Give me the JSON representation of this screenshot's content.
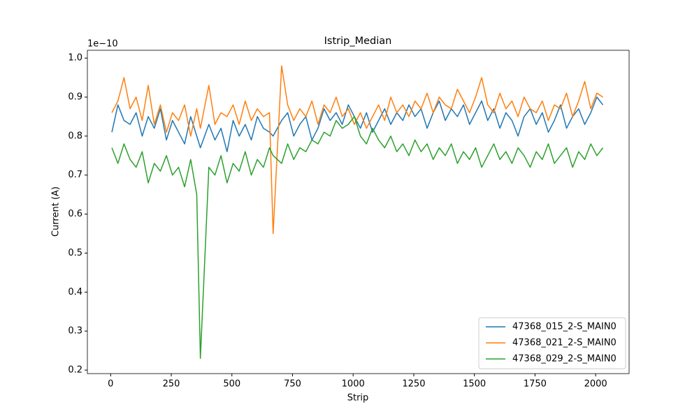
{
  "chart_data": {
    "type": "line",
    "title": "Istrip_Median",
    "xlabel": "Strip",
    "ylabel": "Current (A)",
    "y_offset_label": "1e−10",
    "x": [
      5,
      30,
      55,
      80,
      105,
      130,
      155,
      180,
      205,
      230,
      255,
      280,
      305,
      330,
      355,
      370,
      405,
      430,
      455,
      480,
      505,
      530,
      555,
      580,
      605,
      630,
      655,
      670,
      705,
      730,
      755,
      780,
      805,
      830,
      855,
      880,
      905,
      930,
      955,
      980,
      1005,
      1030,
      1055,
      1080,
      1105,
      1130,
      1155,
      1180,
      1205,
      1230,
      1255,
      1280,
      1305,
      1330,
      1355,
      1380,
      1405,
      1430,
      1455,
      1480,
      1505,
      1530,
      1555,
      1580,
      1605,
      1630,
      1655,
      1680,
      1705,
      1730,
      1755,
      1780,
      1805,
      1830,
      1855,
      1880,
      1905,
      1930,
      1955,
      1980,
      2005,
      2030
    ],
    "series": [
      {
        "name": "47368_015_2-S_MAIN0",
        "color": "#1f77b4",
        "values": [
          0.81,
          0.88,
          0.84,
          0.83,
          0.86,
          0.8,
          0.85,
          0.82,
          0.87,
          0.79,
          0.84,
          0.81,
          0.78,
          0.85,
          0.8,
          0.77,
          0.83,
          0.79,
          0.82,
          0.76,
          0.84,
          0.8,
          0.83,
          0.79,
          0.85,
          0.82,
          0.81,
          0.8,
          0.84,
          0.86,
          0.8,
          0.83,
          0.85,
          0.79,
          0.82,
          0.87,
          0.84,
          0.86,
          0.83,
          0.88,
          0.85,
          0.82,
          0.86,
          0.81,
          0.84,
          0.87,
          0.83,
          0.86,
          0.84,
          0.88,
          0.85,
          0.87,
          0.82,
          0.86,
          0.89,
          0.84,
          0.87,
          0.85,
          0.88,
          0.83,
          0.86,
          0.89,
          0.84,
          0.87,
          0.82,
          0.86,
          0.84,
          0.8,
          0.85,
          0.87,
          0.83,
          0.86,
          0.81,
          0.84,
          0.88,
          0.82,
          0.85,
          0.87,
          0.83,
          0.86,
          0.9,
          0.88
        ]
      },
      {
        "name": "47368_021_2-S_MAIN0",
        "color": "#ff7f0e",
        "values": [
          0.86,
          0.89,
          0.95,
          0.87,
          0.9,
          0.84,
          0.93,
          0.83,
          0.88,
          0.81,
          0.86,
          0.84,
          0.88,
          0.8,
          0.87,
          0.82,
          0.93,
          0.83,
          0.86,
          0.85,
          0.88,
          0.83,
          0.89,
          0.84,
          0.87,
          0.85,
          0.86,
          0.55,
          0.98,
          0.88,
          0.84,
          0.87,
          0.85,
          0.89,
          0.83,
          0.88,
          0.86,
          0.9,
          0.85,
          0.87,
          0.83,
          0.86,
          0.82,
          0.85,
          0.88,
          0.84,
          0.9,
          0.86,
          0.88,
          0.85,
          0.89,
          0.87,
          0.91,
          0.86,
          0.9,
          0.88,
          0.87,
          0.92,
          0.89,
          0.86,
          0.9,
          0.95,
          0.88,
          0.86,
          0.91,
          0.87,
          0.89,
          0.85,
          0.9,
          0.87,
          0.86,
          0.89,
          0.84,
          0.88,
          0.87,
          0.91,
          0.85,
          0.89,
          0.94,
          0.87,
          0.91,
          0.9
        ]
      },
      {
        "name": "47368_029_2-S_MAIN0",
        "color": "#2ca02c",
        "values": [
          0.77,
          0.73,
          0.78,
          0.74,
          0.72,
          0.76,
          0.68,
          0.73,
          0.71,
          0.75,
          0.7,
          0.72,
          0.67,
          0.74,
          0.65,
          0.23,
          0.72,
          0.7,
          0.75,
          0.68,
          0.73,
          0.71,
          0.76,
          0.7,
          0.74,
          0.72,
          0.77,
          0.75,
          0.73,
          0.78,
          0.74,
          0.77,
          0.76,
          0.79,
          0.78,
          0.81,
          0.8,
          0.84,
          0.82,
          0.83,
          0.85,
          0.8,
          0.78,
          0.82,
          0.79,
          0.77,
          0.8,
          0.76,
          0.78,
          0.75,
          0.79,
          0.76,
          0.78,
          0.74,
          0.77,
          0.75,
          0.78,
          0.73,
          0.76,
          0.74,
          0.77,
          0.72,
          0.75,
          0.78,
          0.74,
          0.76,
          0.73,
          0.77,
          0.75,
          0.72,
          0.76,
          0.74,
          0.78,
          0.73,
          0.75,
          0.77,
          0.72,
          0.76,
          0.74,
          0.78,
          0.75,
          0.77
        ]
      }
    ],
    "xlim": [
      -96,
      2138
    ],
    "ylim": [
      0.191,
      1.02
    ],
    "xticks": [
      0,
      250,
      500,
      750,
      1000,
      1250,
      1500,
      1750,
      2000
    ],
    "yticks": [
      0.2,
      0.3,
      0.4,
      0.5,
      0.6,
      0.7,
      0.8,
      0.9,
      {
        "value": 1.0,
        "label": "1.0"
      }
    ],
    "legend": "lower right"
  }
}
